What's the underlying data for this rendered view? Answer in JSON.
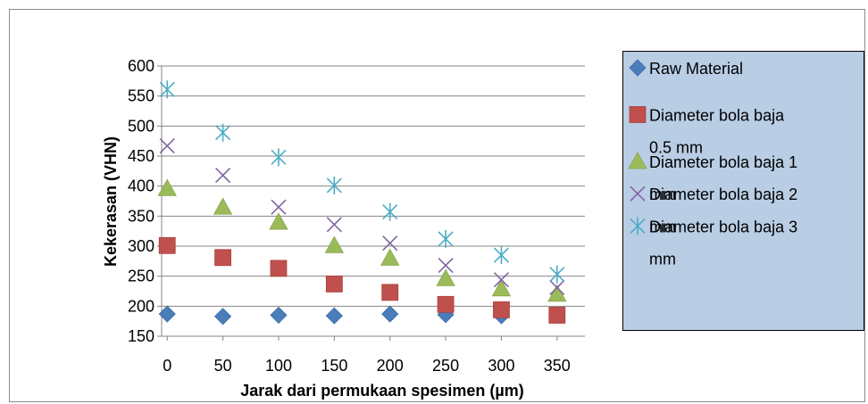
{
  "chart_data": {
    "type": "scatter",
    "title": "",
    "xlabel": "Jarak dari permukaan spesimen (µm)",
    "ylabel": "Kekerasan (VHN)",
    "xlim": [
      -5,
      375
    ],
    "ylim": [
      150,
      600
    ],
    "xticks": [
      0,
      50,
      100,
      150,
      200,
      250,
      300,
      350
    ],
    "yticks": [
      150,
      200,
      250,
      300,
      350,
      400,
      450,
      500,
      550,
      600
    ],
    "grid": "horizontal",
    "legend_position": "right",
    "x": [
      0,
      50,
      100,
      150,
      200,
      250,
      300,
      350
    ],
    "series": [
      {
        "name": "Raw Material",
        "marker": "diamond",
        "color": "#4a7ebb",
        "values": [
          187,
          183,
          185,
          184,
          187,
          186,
          184,
          185
        ]
      },
      {
        "name": "Diameter bola baja 0.5 mm",
        "marker": "square",
        "color": "#c0504d",
        "values": [
          301,
          281,
          263,
          237,
          223,
          203,
          194,
          185
        ]
      },
      {
        "name": "Diameter bola baja 1 mm",
        "marker": "triangle",
        "color": "#9bbb59",
        "values": [
          396,
          365,
          340,
          301,
          280,
          246,
          229,
          220
        ]
      },
      {
        "name": "Diameter bola baja 2 mm",
        "marker": "x",
        "color": "#8064a2",
        "values": [
          467,
          418,
          365,
          336,
          305,
          268,
          244,
          231
        ]
      },
      {
        "name": "Diameter bola baja 3 mm",
        "marker": "star",
        "color": "#4bacc6",
        "values": [
          561,
          489,
          448,
          401,
          357,
          312,
          285,
          253
        ]
      }
    ],
    "legend_lines": [
      [
        "Raw Material"
      ],
      [
        "Diameter bola baja",
        "0.5 mm"
      ],
      [
        "Diameter bola baja 1",
        "mm"
      ],
      [
        "Diameter bola baja 2",
        "mm"
      ],
      [
        "Diameter bola baja 3",
        "mm"
      ]
    ]
  }
}
